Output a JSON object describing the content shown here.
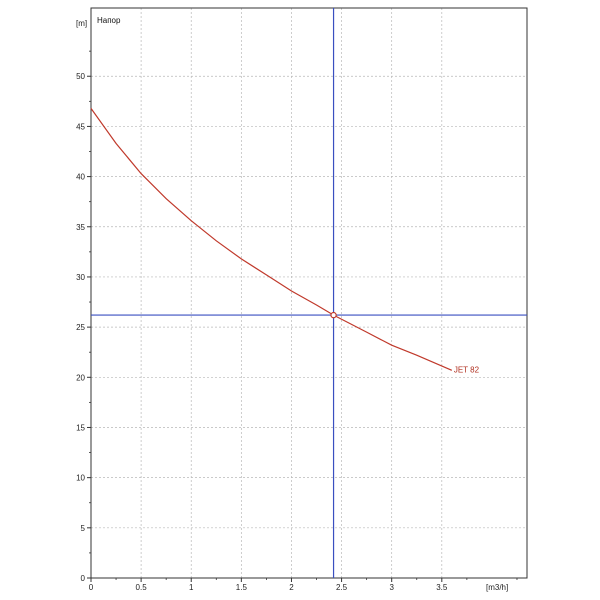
{
  "chart_data": {
    "type": "line",
    "title": "Напор",
    "xlabel": "[m3/h]",
    "ylabel": "[m]",
    "xlim": [
      0,
      4.35
    ],
    "ylim": [
      0,
      56.8
    ],
    "x_ticks": [
      {
        "value": 0,
        "label": "0"
      },
      {
        "value": 0.5,
        "label": "0.5"
      },
      {
        "value": 1,
        "label": "1"
      },
      {
        "value": 1.5,
        "label": "1.5"
      },
      {
        "value": 2,
        "label": "2"
      },
      {
        "value": 2.5,
        "label": "2.5"
      },
      {
        "value": 3,
        "label": "3"
      },
      {
        "value": 3.5,
        "label": "3.5"
      }
    ],
    "y_ticks": [
      {
        "value": 0,
        "label": "0"
      },
      {
        "value": 5,
        "label": "5"
      },
      {
        "value": 10,
        "label": "10"
      },
      {
        "value": 15,
        "label": "15"
      },
      {
        "value": 20,
        "label": "20"
      },
      {
        "value": 25,
        "label": "25"
      },
      {
        "value": 30,
        "label": "30"
      },
      {
        "value": 35,
        "label": "35"
      },
      {
        "value": 40,
        "label": "40"
      },
      {
        "value": 45,
        "label": "45"
      },
      {
        "value": 50,
        "label": "50"
      }
    ],
    "grid": true,
    "series": [
      {
        "name": "JET 82",
        "color": "#c0392b",
        "x": [
          0,
          0.25,
          0.5,
          0.75,
          1.0,
          1.25,
          1.5,
          1.75,
          2.0,
          2.25,
          2.42,
          2.75,
          3.0,
          3.25,
          3.6
        ],
        "y": [
          46.8,
          43.3,
          40.3,
          37.8,
          35.6,
          33.6,
          31.8,
          30.2,
          28.6,
          27.2,
          26.2,
          24.5,
          23.2,
          22.2,
          20.7
        ]
      }
    ],
    "operating_point": {
      "x": 2.42,
      "y": 26.2
    },
    "crosshair_color": "#3a4fc0"
  }
}
